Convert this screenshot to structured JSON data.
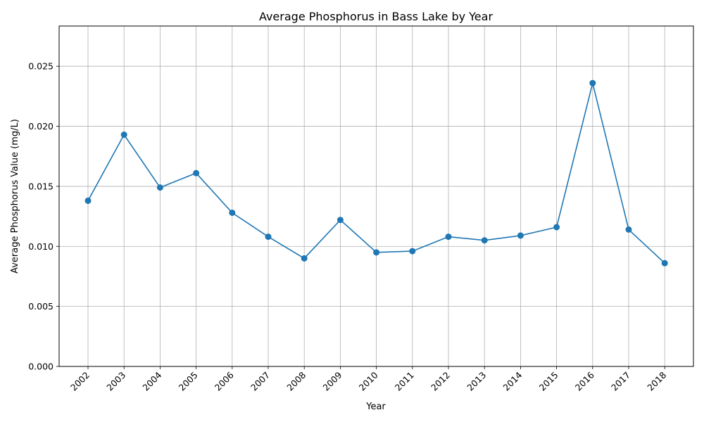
{
  "chart_data": {
    "type": "line",
    "title": "Average Phosphorus in Bass Lake by Year",
    "xlabel": "Year",
    "ylabel": "Average Phosphorus Value (mg/L)",
    "categories": [
      "2002",
      "2003",
      "2004",
      "2005",
      "2006",
      "2007",
      "2008",
      "2009",
      "2010",
      "2011",
      "2012",
      "2013",
      "2014",
      "2015",
      "2016",
      "2017",
      "2018"
    ],
    "series": [
      {
        "values": [
          0.0138,
          0.0193,
          0.0149,
          0.0161,
          0.0128,
          0.0108,
          0.009,
          0.0122,
          0.0095,
          0.0096,
          0.0108,
          0.0105,
          0.0109,
          0.0116,
          0.0236,
          0.0114,
          0.0086
        ]
      }
    ],
    "ylim": [
      0,
      0.02835
    ],
    "yticks": [
      "0.000",
      "0.005",
      "0.010",
      "0.015",
      "0.020",
      "0.025"
    ],
    "grid": true,
    "marker": "circle",
    "line_color": "#1f77b4"
  }
}
